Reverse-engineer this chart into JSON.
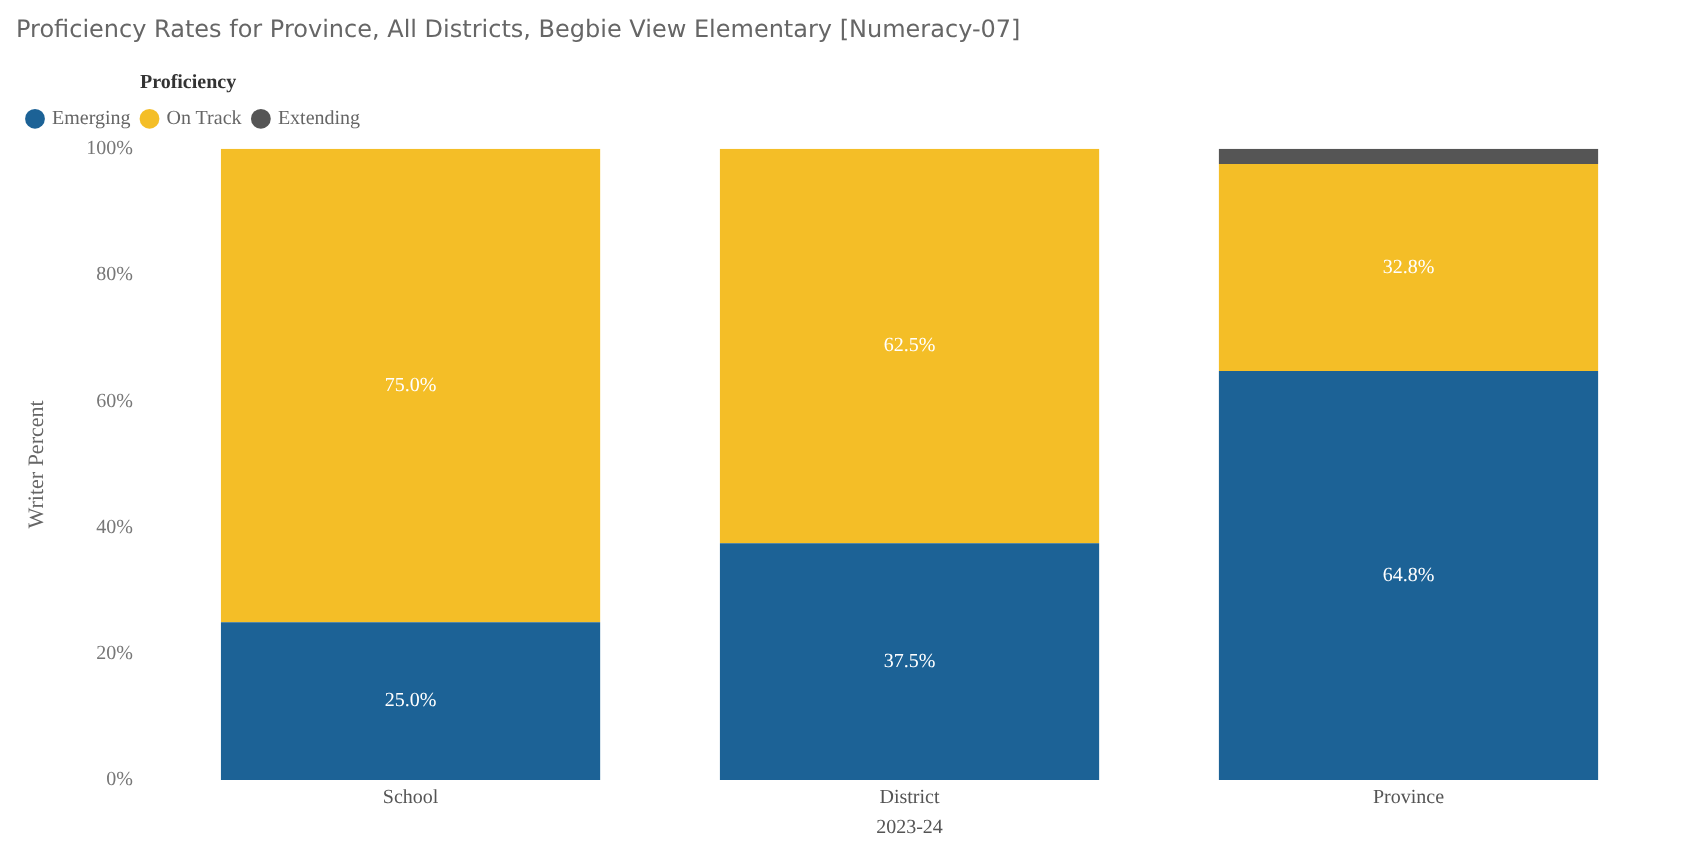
{
  "chart_data": {
    "type": "bar",
    "title": "Proficiency Rates for Province, All Districts, Begbie View Elementary [Numeracy-07]",
    "categories": [
      "School",
      "District",
      "Province"
    ],
    "xlabel": "2023-24",
    "ylabel": "Writer Percent",
    "legend_title": "Proficiency",
    "stacked": true,
    "legend": "top left",
    "grid": false,
    "ylim": [
      0,
      100
    ],
    "yticks": [
      {
        "value": 0,
        "label": "0%"
      },
      {
        "value": 20,
        "label": "20%"
      },
      {
        "value": 40,
        "label": "40%"
      },
      {
        "value": 60,
        "label": "60%"
      },
      {
        "value": 80,
        "label": "80%"
      },
      {
        "value": 100,
        "label": "100%"
      }
    ],
    "series": [
      {
        "name": "Emerging",
        "color": "#1c6296",
        "values": [
          25.0,
          37.5,
          64.8
        ],
        "value_labels": [
          "25.0%",
          "37.5%",
          "64.8%"
        ]
      },
      {
        "name": "On Track",
        "color": "#f4be27",
        "values": [
          75.0,
          62.5,
          32.8
        ],
        "value_labels": [
          "75.0%",
          "62.5%",
          "32.8%"
        ]
      },
      {
        "name": "Extending",
        "color": "#555555",
        "values": [
          0,
          0,
          2.4
        ],
        "value_labels": [
          null,
          null,
          null
        ]
      }
    ]
  }
}
